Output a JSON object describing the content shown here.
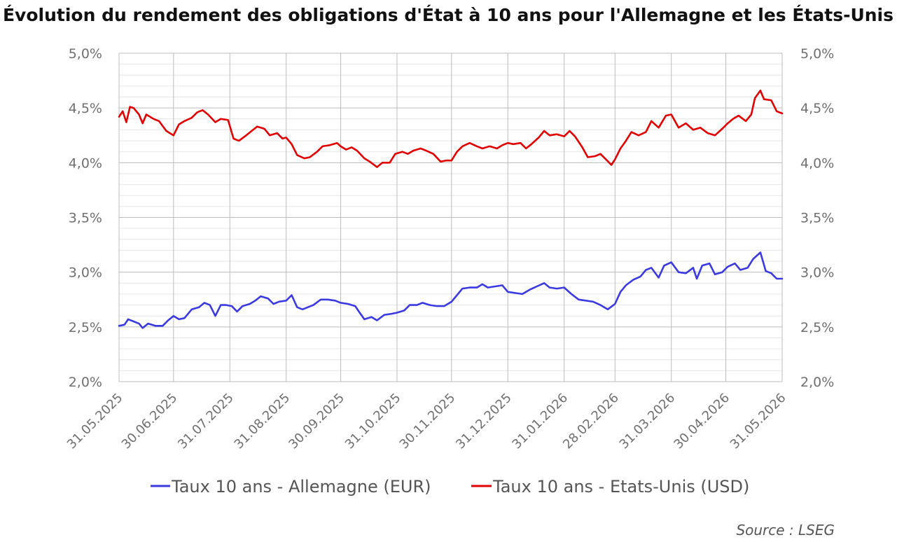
{
  "chart_data": {
    "type": "line",
    "title": "Évolution du rendement des obligations d'État à 10 ans pour l'Allemagne et les États-Unis",
    "source": "Source : LSEG",
    "y_tick_labels": [
      "2,0%",
      "2,5%",
      "3,0%",
      "3,5%",
      "4,0%",
      "4,5%",
      "5,0%"
    ],
    "y_tick_values": [
      2.0,
      2.5,
      3.0,
      3.5,
      4.0,
      4.5,
      5.0
    ],
    "ylim": [
      2.0,
      5.0
    ],
    "y_right_tick_labels": [
      "2,0%",
      "2,5%",
      "3,0%",
      "3,5%",
      "4,0%",
      "4,5%",
      "5,0%"
    ],
    "x_tick_labels": [
      "31.05.2025",
      "30.06.2025",
      "31.07.2025",
      "31.08.2025",
      "30.09.2025",
      "31.10.2025",
      "30.11.2025",
      "31.12.2025",
      "31.01.2026",
      "28.02.2026",
      "31.03.2026",
      "30.04.2026",
      "31.05.2026"
    ],
    "xlim": [
      "2025-05-31",
      "2026-05-31"
    ],
    "grid": true,
    "legend_position": "bottom",
    "series": [
      {
        "name": "Taux 10 ans - Allemagne (EUR)",
        "color": "#3a3ae0",
        "axis": "left",
        "points": [
          [
            "2025-05-31",
            2.51
          ],
          [
            "2025-06-03",
            2.52
          ],
          [
            "2025-06-05",
            2.57
          ],
          [
            "2025-06-08",
            2.55
          ],
          [
            "2025-06-11",
            2.53
          ],
          [
            "2025-06-13",
            2.49
          ],
          [
            "2025-06-16",
            2.53
          ],
          [
            "2025-06-20",
            2.51
          ],
          [
            "2025-06-24",
            2.51
          ],
          [
            "2025-06-27",
            2.56
          ],
          [
            "2025-06-30",
            2.6
          ],
          [
            "2025-07-03",
            2.57
          ],
          [
            "2025-07-06",
            2.58
          ],
          [
            "2025-07-10",
            2.66
          ],
          [
            "2025-07-14",
            2.68
          ],
          [
            "2025-07-17",
            2.72
          ],
          [
            "2025-07-20",
            2.7
          ],
          [
            "2025-07-23",
            2.6
          ],
          [
            "2025-07-26",
            2.7
          ],
          [
            "2025-07-29",
            2.7
          ],
          [
            "2025-08-01",
            2.69
          ],
          [
            "2025-08-04",
            2.64
          ],
          [
            "2025-08-07",
            2.69
          ],
          [
            "2025-08-11",
            2.71
          ],
          [
            "2025-08-14",
            2.74
          ],
          [
            "2025-08-17",
            2.78
          ],
          [
            "2025-08-21",
            2.76
          ],
          [
            "2025-08-24",
            2.71
          ],
          [
            "2025-08-27",
            2.73
          ],
          [
            "2025-08-31",
            2.74
          ],
          [
            "2025-09-03",
            2.79
          ],
          [
            "2025-09-06",
            2.68
          ],
          [
            "2025-09-09",
            2.66
          ],
          [
            "2025-09-12",
            2.68
          ],
          [
            "2025-09-15",
            2.7
          ],
          [
            "2025-09-19",
            2.75
          ],
          [
            "2025-09-23",
            2.75
          ],
          [
            "2025-09-27",
            2.74
          ],
          [
            "2025-09-30",
            2.72
          ],
          [
            "2025-10-04",
            2.71
          ],
          [
            "2025-10-08",
            2.69
          ],
          [
            "2025-10-10",
            2.64
          ],
          [
            "2025-10-13",
            2.57
          ],
          [
            "2025-10-17",
            2.59
          ],
          [
            "2025-10-20",
            2.56
          ],
          [
            "2025-10-24",
            2.61
          ],
          [
            "2025-10-28",
            2.62
          ],
          [
            "2025-10-31",
            2.63
          ],
          [
            "2025-11-04",
            2.65
          ],
          [
            "2025-11-07",
            2.7
          ],
          [
            "2025-11-11",
            2.7
          ],
          [
            "2025-11-14",
            2.72
          ],
          [
            "2025-11-18",
            2.7
          ],
          [
            "2025-11-22",
            2.69
          ],
          [
            "2025-11-26",
            2.69
          ],
          [
            "2025-11-30",
            2.73
          ],
          [
            "2025-12-03",
            2.79
          ],
          [
            "2025-12-06",
            2.85
          ],
          [
            "2025-12-10",
            2.86
          ],
          [
            "2025-12-14",
            2.86
          ],
          [
            "2025-12-17",
            2.89
          ],
          [
            "2025-12-20",
            2.86
          ],
          [
            "2025-12-24",
            2.87
          ],
          [
            "2025-12-28",
            2.88
          ],
          [
            "2025-12-31",
            2.82
          ],
          [
            "2026-01-04",
            2.81
          ],
          [
            "2026-01-08",
            2.8
          ],
          [
            "2026-01-12",
            2.84
          ],
          [
            "2026-01-16",
            2.87
          ],
          [
            "2026-01-20",
            2.9
          ],
          [
            "2026-01-23",
            2.86
          ],
          [
            "2026-01-27",
            2.85
          ],
          [
            "2026-01-31",
            2.86
          ],
          [
            "2026-02-04",
            2.8
          ],
          [
            "2026-02-08",
            2.75
          ],
          [
            "2026-02-12",
            2.74
          ],
          [
            "2026-02-16",
            2.73
          ],
          [
            "2026-02-20",
            2.7
          ],
          [
            "2026-02-24",
            2.66
          ],
          [
            "2026-02-28",
            2.71
          ],
          [
            "2026-03-03",
            2.82
          ],
          [
            "2026-03-06",
            2.88
          ],
          [
            "2026-03-10",
            2.93
          ],
          [
            "2026-03-14",
            2.96
          ],
          [
            "2026-03-17",
            3.02
          ],
          [
            "2026-03-20",
            3.04
          ],
          [
            "2026-03-24",
            2.95
          ],
          [
            "2026-03-27",
            3.06
          ],
          [
            "2026-03-31",
            3.09
          ],
          [
            "2026-04-04",
            3.0
          ],
          [
            "2026-04-08",
            2.99
          ],
          [
            "2026-04-12",
            3.04
          ],
          [
            "2026-04-14",
            2.94
          ],
          [
            "2026-04-17",
            3.06
          ],
          [
            "2026-04-21",
            3.08
          ],
          [
            "2026-04-24",
            2.98
          ],
          [
            "2026-04-28",
            3.0
          ],
          [
            "2026-05-01",
            3.05
          ],
          [
            "2026-05-05",
            3.08
          ],
          [
            "2026-05-08",
            3.02
          ],
          [
            "2026-05-12",
            3.04
          ],
          [
            "2026-05-15",
            3.12
          ],
          [
            "2026-05-19",
            3.18
          ],
          [
            "2026-05-22",
            3.01
          ],
          [
            "2026-05-25",
            2.99
          ],
          [
            "2026-05-28",
            2.94
          ],
          [
            "2026-05-31",
            2.94
          ]
        ]
      },
      {
        "name": "Taux 10 ans - Etats-Unis (USD)",
        "color": "#e00000",
        "axis": "right",
        "points": [
          [
            "2025-05-31",
            4.42
          ],
          [
            "2025-06-02",
            4.47
          ],
          [
            "2025-06-04",
            4.37
          ],
          [
            "2025-06-06",
            4.51
          ],
          [
            "2025-06-08",
            4.5
          ],
          [
            "2025-06-11",
            4.44
          ],
          [
            "2025-06-13",
            4.36
          ],
          [
            "2025-06-15",
            4.44
          ],
          [
            "2025-06-19",
            4.4
          ],
          [
            "2025-06-22",
            4.38
          ],
          [
            "2025-06-26",
            4.29
          ],
          [
            "2025-06-30",
            4.25
          ],
          [
            "2025-07-03",
            4.35
          ],
          [
            "2025-07-06",
            4.38
          ],
          [
            "2025-07-10",
            4.41
          ],
          [
            "2025-07-13",
            4.46
          ],
          [
            "2025-07-16",
            4.48
          ],
          [
            "2025-07-19",
            4.44
          ],
          [
            "2025-07-23",
            4.37
          ],
          [
            "2025-07-26",
            4.4
          ],
          [
            "2025-07-30",
            4.39
          ],
          [
            "2025-08-02",
            4.22
          ],
          [
            "2025-08-05",
            4.2
          ],
          [
            "2025-08-09",
            4.25
          ],
          [
            "2025-08-12",
            4.29
          ],
          [
            "2025-08-15",
            4.33
          ],
          [
            "2025-08-19",
            4.31
          ],
          [
            "2025-08-22",
            4.25
          ],
          [
            "2025-08-26",
            4.27
          ],
          [
            "2025-08-29",
            4.22
          ],
          [
            "2025-08-31",
            4.23
          ],
          [
            "2025-09-03",
            4.17
          ],
          [
            "2025-09-06",
            4.07
          ],
          [
            "2025-09-10",
            4.04
          ],
          [
            "2025-09-13",
            4.05
          ],
          [
            "2025-09-17",
            4.1
          ],
          [
            "2025-09-20",
            4.15
          ],
          [
            "2025-09-24",
            4.16
          ],
          [
            "2025-09-28",
            4.18
          ],
          [
            "2025-09-30",
            4.15
          ],
          [
            "2025-10-03",
            4.12
          ],
          [
            "2025-10-06",
            4.14
          ],
          [
            "2025-10-09",
            4.11
          ],
          [
            "2025-10-13",
            4.04
          ],
          [
            "2025-10-16",
            4.01
          ],
          [
            "2025-10-20",
            3.96
          ],
          [
            "2025-10-23",
            4.0
          ],
          [
            "2025-10-27",
            4.0
          ],
          [
            "2025-10-30",
            4.08
          ],
          [
            "2025-11-03",
            4.1
          ],
          [
            "2025-11-06",
            4.08
          ],
          [
            "2025-11-09",
            4.11
          ],
          [
            "2025-11-13",
            4.13
          ],
          [
            "2025-11-16",
            4.11
          ],
          [
            "2025-11-20",
            4.08
          ],
          [
            "2025-11-24",
            4.01
          ],
          [
            "2025-11-27",
            4.02
          ],
          [
            "2025-11-30",
            4.02
          ],
          [
            "2025-12-03",
            4.1
          ],
          [
            "2025-12-06",
            4.15
          ],
          [
            "2025-12-10",
            4.18
          ],
          [
            "2025-12-14",
            4.15
          ],
          [
            "2025-12-17",
            4.13
          ],
          [
            "2025-12-21",
            4.15
          ],
          [
            "2025-12-25",
            4.13
          ],
          [
            "2025-12-28",
            4.16
          ],
          [
            "2025-12-31",
            4.18
          ],
          [
            "2026-01-03",
            4.17
          ],
          [
            "2026-01-07",
            4.18
          ],
          [
            "2026-01-10",
            4.13
          ],
          [
            "2026-01-13",
            4.17
          ],
          [
            "2026-01-17",
            4.23
          ],
          [
            "2026-01-20",
            4.29
          ],
          [
            "2026-01-23",
            4.25
          ],
          [
            "2026-01-27",
            4.26
          ],
          [
            "2026-01-31",
            4.24
          ],
          [
            "2026-02-03",
            4.29
          ],
          [
            "2026-02-06",
            4.24
          ],
          [
            "2026-02-10",
            4.14
          ],
          [
            "2026-02-13",
            4.05
          ],
          [
            "2026-02-17",
            4.06
          ],
          [
            "2026-02-20",
            4.08
          ],
          [
            "2026-02-23",
            4.03
          ],
          [
            "2026-02-26",
            3.98
          ],
          [
            "2026-02-28",
            4.03
          ],
          [
            "2026-03-03",
            4.13
          ],
          [
            "2026-03-06",
            4.2
          ],
          [
            "2026-03-09",
            4.28
          ],
          [
            "2026-03-13",
            4.25
          ],
          [
            "2026-03-17",
            4.28
          ],
          [
            "2026-03-20",
            4.38
          ],
          [
            "2026-03-24",
            4.32
          ],
          [
            "2026-03-28",
            4.43
          ],
          [
            "2026-03-31",
            4.44
          ],
          [
            "2026-04-04",
            4.32
          ],
          [
            "2026-04-08",
            4.36
          ],
          [
            "2026-04-12",
            4.3
          ],
          [
            "2026-04-16",
            4.32
          ],
          [
            "2026-04-20",
            4.27
          ],
          [
            "2026-04-24",
            4.25
          ],
          [
            "2026-04-28",
            4.31
          ],
          [
            "2026-05-01",
            4.36
          ],
          [
            "2026-05-04",
            4.4
          ],
          [
            "2026-05-07",
            4.43
          ],
          [
            "2026-05-11",
            4.38
          ],
          [
            "2026-05-14",
            4.44
          ],
          [
            "2026-05-16",
            4.59
          ],
          [
            "2026-05-19",
            4.66
          ],
          [
            "2026-05-21",
            4.58
          ],
          [
            "2026-05-25",
            4.57
          ],
          [
            "2026-05-28",
            4.47
          ],
          [
            "2026-05-31",
            4.45
          ]
        ]
      }
    ]
  }
}
